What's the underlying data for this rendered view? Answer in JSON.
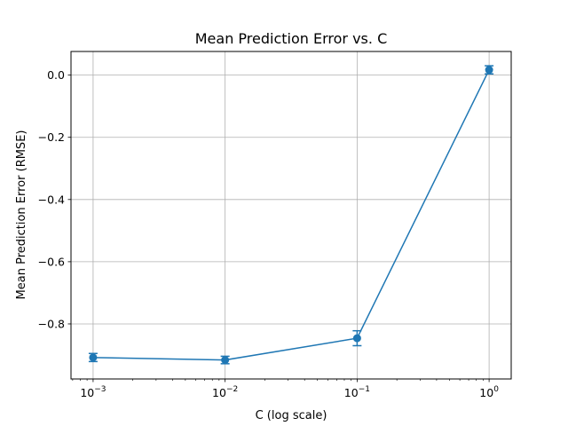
{
  "chart_data": {
    "type": "line",
    "title": "Mean Prediction Error vs. C",
    "xlabel": "C (log scale)",
    "ylabel": "Mean Prediction Error (RMSE)",
    "x_scale": "log",
    "x": [
      0.001,
      0.01,
      0.1,
      1
    ],
    "x_tick_labels": [
      {
        "base": "10",
        "exp": "−3"
      },
      {
        "base": "10",
        "exp": "−2"
      },
      {
        "base": "10",
        "exp": "−1"
      },
      {
        "base": "10",
        "exp": "0"
      }
    ],
    "series": [
      {
        "values": [
          -0.908,
          -0.916,
          -0.846,
          0.017
        ],
        "error": [
          0.013,
          0.012,
          0.024,
          0.013
        ],
        "color": "#1f77b4"
      }
    ],
    "xlim": [
      0.00068,
      1.47
    ],
    "ylim": [
      -0.977,
      0.076
    ],
    "y_ticks": [
      0.0,
      -0.2,
      -0.4,
      -0.6,
      -0.8
    ],
    "y_tick_labels": [
      "0.0",
      "−0.2",
      "−0.4",
      "−0.6",
      "−0.8"
    ],
    "grid": true,
    "legend": "none"
  }
}
